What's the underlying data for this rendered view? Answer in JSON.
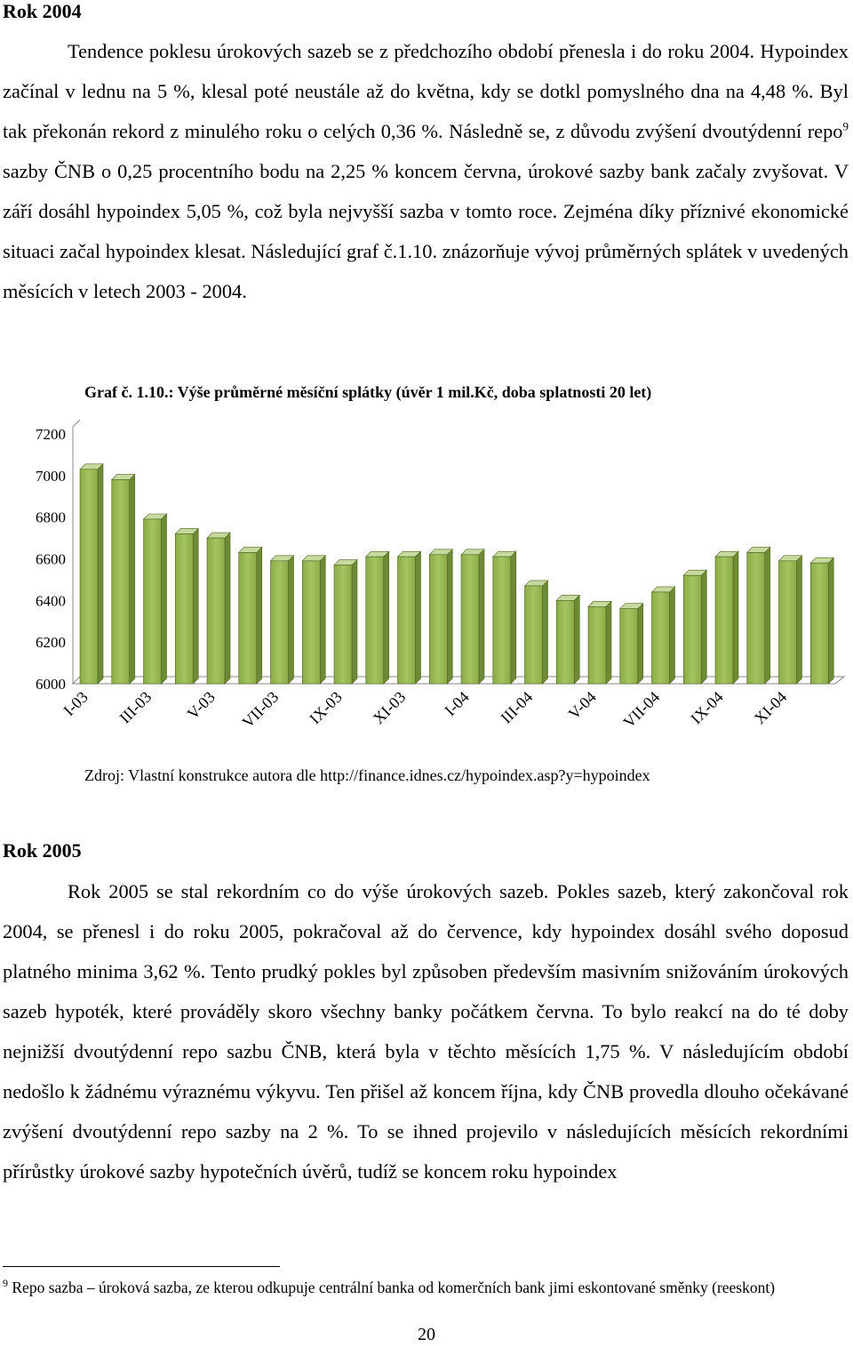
{
  "heading_2004": "Rok 2004",
  "paragraph_2004": {
    "before_ref": "Tendence poklesu úrokových sazeb se z předchozího období přenesla i do roku 2004. Hypoindex začínal v lednu na 5 %, klesal poté neustále až do května, kdy se dotkl pomyslného dna na 4,48 %. Byl tak překonán rekord z minulého roku o celých 0,36 %. Následně se, z důvodu zvýšení dvoutýdenní repo",
    "ref": "9",
    "after_ref": " sazby ČNB o 0,25 procentního bodu na 2,25 % koncem června, úrokové sazby bank začaly zvyšovat. V září dosáhl hypoindex 5,05 %, což byla nejvyšší sazba v tomto roce. Zejména díky příznivé ekonomické situaci začal hypoindex klesat. Následující graf č.1.10. znázorňuje vývoj průměrných splátek v uvedených měsících v letech 2003 - 2004."
  },
  "chart_data": {
    "type": "bar",
    "title": "Graf č. 1.10.: Výše průměrné měsíční splátky (úvěr 1 mil.Kč, doba splatnosti 20 let)",
    "categories": [
      "I-03",
      null,
      "III-03",
      null,
      "V-03",
      null,
      "VII-03",
      null,
      "IX-03",
      null,
      "XI-03",
      null,
      "I-04",
      null,
      "III-04",
      null,
      "V-04",
      null,
      "VII-04",
      null,
      "IX-04",
      null,
      "XI-04",
      null
    ],
    "values": [
      7030,
      6980,
      6790,
      6720,
      6700,
      6630,
      6590,
      6590,
      6570,
      6610,
      6610,
      6620,
      6620,
      6610,
      6470,
      6400,
      6370,
      6360,
      6440,
      6520,
      6610,
      6630,
      6590,
      6580
    ],
    "color": "#9bbb59",
    "ylim": [
      6000,
      7200
    ],
    "yticks": [
      6000,
      6200,
      6400,
      6600,
      6800,
      7000,
      7200
    ]
  },
  "source": "Zdroj: Vlastní konstrukce autora dle http://finance.idnes.cz/hypoindex.asp?y=hypoindex",
  "heading_2005": "Rok 2005",
  "paragraph_2005": "Rok 2005 se stal rekordním co do výše úrokových sazeb. Pokles sazeb, který zakončoval rok 2004, se přenesl i do roku 2005, pokračoval až do července, kdy hypoindex dosáhl svého doposud platného minima 3,62 %. Tento prudký pokles byl způsoben především masivním snižováním úrokových sazeb hypoték, které prováděly skoro všechny banky počátkem června. To bylo reakcí na do té doby nejnižší dvoutýdenní repo sazbu ČNB, která byla v těchto měsících 1,75 %. V následujícím období nedošlo k žádnému výraznému výkyvu. Ten přišel až koncem října, kdy ČNB provedla dlouho očekávané zvýšení dvoutýdenní repo sazby na 2 %. To se ihned projevilo v následujících měsících rekordními přírůstky úrokové sazby hypotečních úvěrů, tudíž se koncem roku hypoindex",
  "footnote": {
    "mark": "9",
    "text": "Repo sazba – úroková sazba, ze kterou odkupuje centrální banka od komerčních bank jimi eskontované směnky (reeskont)"
  },
  "page_number": "20"
}
